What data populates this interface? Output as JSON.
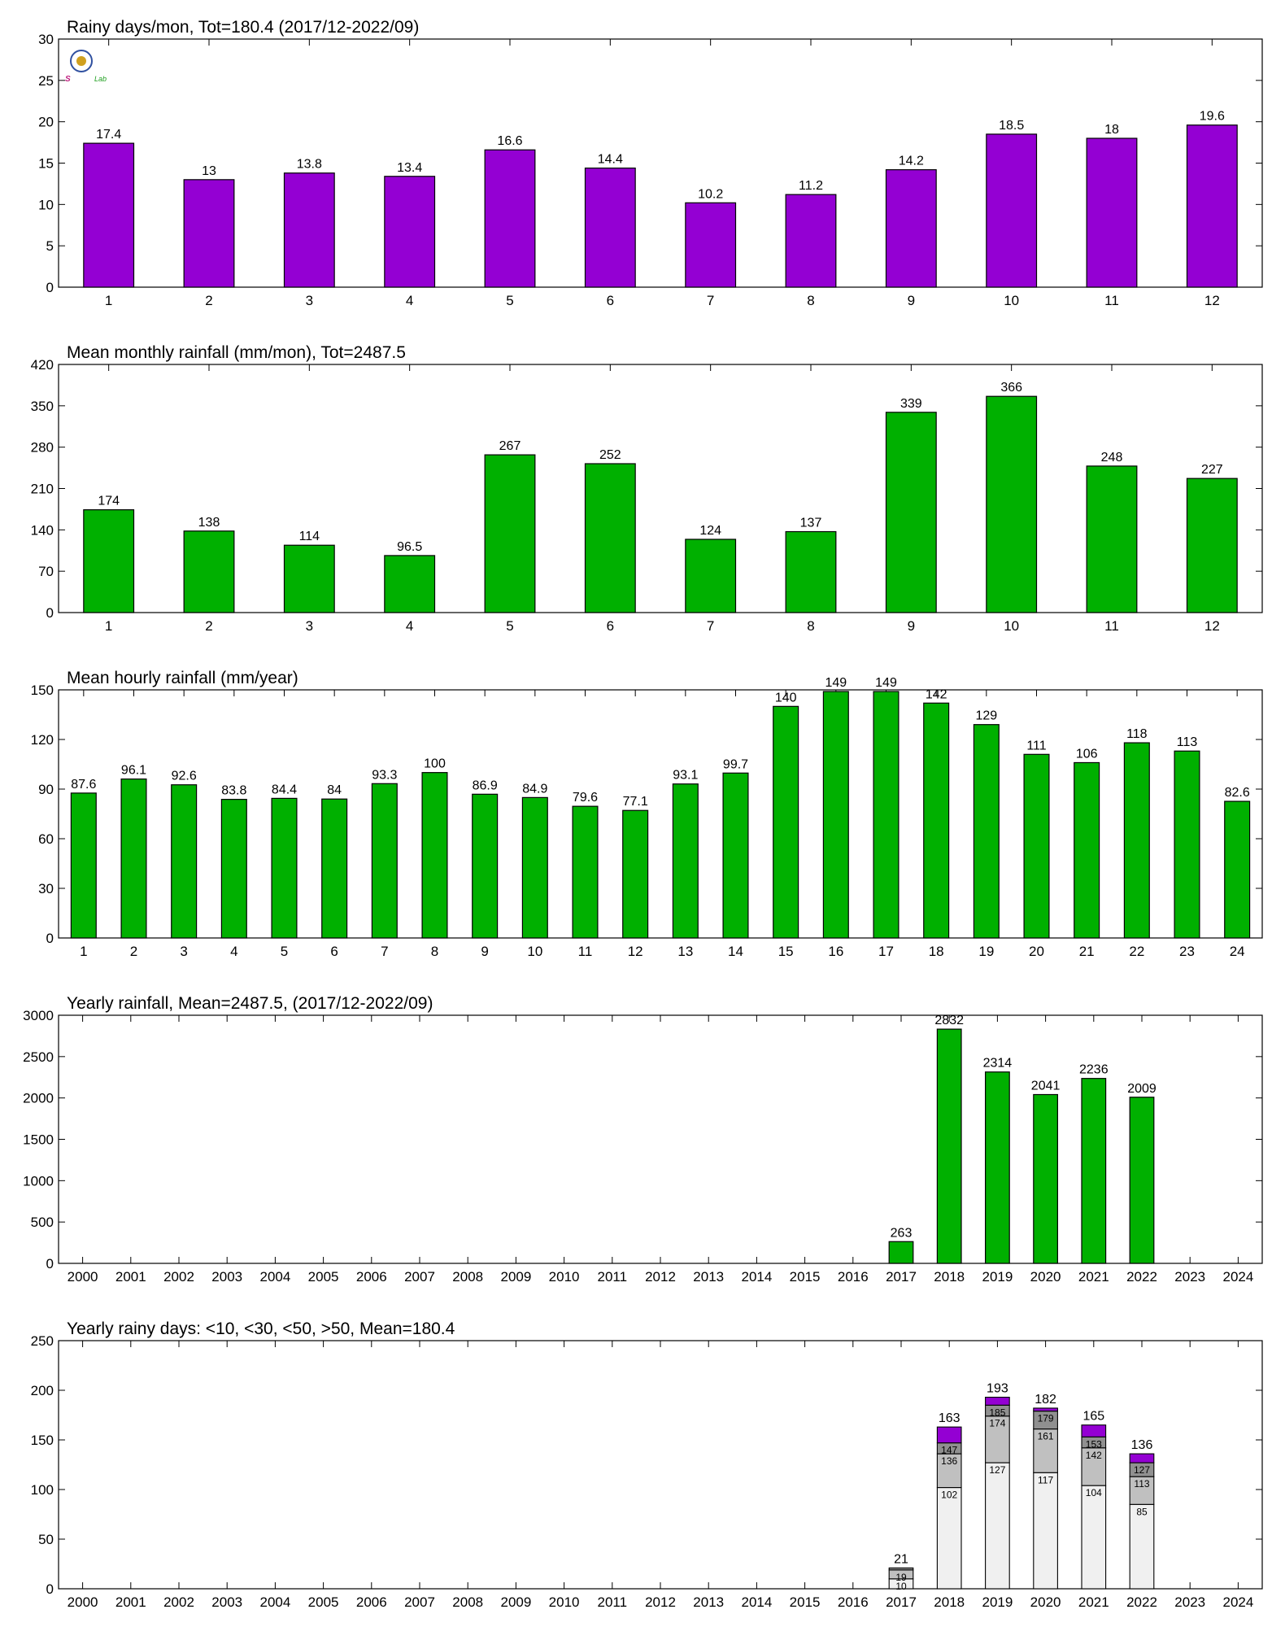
{
  "colors": {
    "purple": "#9400d3",
    "green": "#00b000",
    "seg_lt10": "#f0f0f0",
    "seg_lt30": "#c0c0c0",
    "seg_lt50": "#909090",
    "seg_gt50": "#9400d3",
    "axis": "#000000"
  },
  "logo": {
    "text_left": "S",
    "text_right": "Lab",
    "icon": "university-seal-icon"
  },
  "chart_data": [
    {
      "type": "bar",
      "title": "Rainy days/mon, Tot=180.4 (2017/12-2022/09)",
      "categories": [
        "1",
        "2",
        "3",
        "4",
        "5",
        "6",
        "7",
        "8",
        "9",
        "10",
        "11",
        "12"
      ],
      "values": [
        17.4,
        13,
        13.8,
        13.4,
        16.6,
        14.4,
        10.2,
        11.2,
        14.2,
        18.5,
        18,
        19.6
      ],
      "labels": [
        "17.4",
        "13",
        "13.8",
        "13.4",
        "16.6",
        "14.4",
        "10.2",
        "11.2",
        "14.2",
        "18.5",
        "18",
        "19.6"
      ],
      "ylim": [
        0,
        30
      ],
      "yticks": [
        "0",
        "5",
        "10",
        "15",
        "20",
        "25",
        "30"
      ],
      "color": "#9400d3",
      "grid": false
    },
    {
      "type": "bar",
      "title": "Mean monthly rainfall (mm/mon), Tot=2487.5",
      "categories": [
        "1",
        "2",
        "3",
        "4",
        "5",
        "6",
        "7",
        "8",
        "9",
        "10",
        "11",
        "12"
      ],
      "values": [
        174,
        138,
        114,
        96.5,
        267,
        252,
        124,
        137,
        339,
        366,
        248,
        227
      ],
      "labels": [
        "174",
        "138",
        "114",
        "96.5",
        "267",
        "252",
        "124",
        "137",
        "339",
        "366",
        "248",
        "227"
      ],
      "ylim": [
        0,
        420
      ],
      "yticks": [
        "0",
        "70",
        "140",
        "210",
        "280",
        "350",
        "420"
      ],
      "color": "#00b000",
      "grid": false
    },
    {
      "type": "bar",
      "title": "Mean hourly rainfall (mm/year)",
      "categories": [
        "1",
        "2",
        "3",
        "4",
        "5",
        "6",
        "7",
        "8",
        "9",
        "10",
        "11",
        "12",
        "13",
        "14",
        "15",
        "16",
        "17",
        "18",
        "19",
        "20",
        "21",
        "22",
        "23",
        "24"
      ],
      "values": [
        87.6,
        96.1,
        92.6,
        83.8,
        84.4,
        84,
        93.3,
        100,
        86.9,
        84.9,
        79.6,
        77.1,
        93.1,
        99.7,
        140,
        149,
        149,
        142,
        129,
        111,
        106,
        118,
        113,
        82.6
      ],
      "labels": [
        "87.6",
        "96.1",
        "92.6",
        "83.8",
        "84.4",
        "84",
        "93.3",
        "100",
        "86.9",
        "84.9",
        "79.6",
        "77.1",
        "93.1",
        "99.7",
        "140",
        "149",
        "149",
        "142",
        "129",
        "111",
        "106",
        "118",
        "113",
        "82.6"
      ],
      "ylim": [
        0,
        150
      ],
      "yticks": [
        "0",
        "30",
        "60",
        "90",
        "120",
        "150"
      ],
      "color": "#00b000",
      "grid": false
    },
    {
      "type": "bar",
      "title": "Yearly rainfall, Mean=2487.5, (2017/12-2022/09)",
      "categories": [
        "2000",
        "2001",
        "2002",
        "2003",
        "2004",
        "2005",
        "2006",
        "2007",
        "2008",
        "2009",
        "2010",
        "2011",
        "2012",
        "2013",
        "2014",
        "2015",
        "2016",
        "2017",
        "2018",
        "2019",
        "2020",
        "2021",
        "2022",
        "2023",
        "2024"
      ],
      "values": [
        null,
        null,
        null,
        null,
        null,
        null,
        null,
        null,
        null,
        null,
        null,
        null,
        null,
        null,
        null,
        null,
        null,
        263,
        2832,
        2314,
        2041,
        2236,
        2009,
        null,
        null
      ],
      "labels": [
        "",
        "",
        "",
        "",
        "",
        "",
        "",
        "",
        "",
        "",
        "",
        "",
        "",
        "",
        "",
        "",
        "",
        "263",
        "2832",
        "2314",
        "2041",
        "2236",
        "2009",
        "",
        ""
      ],
      "ylim": [
        0,
        3000
      ],
      "yticks": [
        "0",
        "500",
        "1000",
        "1500",
        "2000",
        "2500",
        "3000"
      ],
      "color": "#00b000",
      "grid": false
    },
    {
      "type": "bar",
      "stacked": true,
      "title": "Yearly rainy days: <10, <30, <50, >50, Mean=180.4",
      "categories": [
        "2000",
        "2001",
        "2002",
        "2003",
        "2004",
        "2005",
        "2006",
        "2007",
        "2008",
        "2009",
        "2010",
        "2011",
        "2012",
        "2013",
        "2014",
        "2015",
        "2016",
        "2017",
        "2018",
        "2019",
        "2020",
        "2021",
        "2022",
        "2023",
        "2024"
      ],
      "cumulative": [
        null,
        null,
        null,
        null,
        null,
        null,
        null,
        null,
        null,
        null,
        null,
        null,
        null,
        null,
        null,
        null,
        null,
        [
          10,
          19,
          21,
          21
        ],
        [
          102,
          136,
          147,
          163
        ],
        [
          127,
          174,
          185,
          193
        ],
        [
          117,
          161,
          179,
          182
        ],
        [
          104,
          142,
          153,
          165
        ],
        [
          85,
          113,
          127,
          136
        ],
        null,
        null
      ],
      "segment_labels": [
        null,
        null,
        null,
        null,
        null,
        null,
        null,
        null,
        null,
        null,
        null,
        null,
        null,
        null,
        null,
        null,
        null,
        [
          "10",
          "19",
          "",
          ""
        ],
        [
          "102",
          "136",
          "147",
          ""
        ],
        [
          "127",
          "174",
          "185",
          ""
        ],
        [
          "117",
          "161",
          "179",
          ""
        ],
        [
          "104",
          "142",
          "153",
          ""
        ],
        [
          "85",
          "113",
          "127",
          ""
        ],
        null,
        null
      ],
      "totals": [
        "",
        "",
        "",
        "",
        "",
        "",
        "",
        "",
        "",
        "",
        "",
        "",
        "",
        "",
        "",
        "",
        "",
        "21",
        "163",
        "193",
        "182",
        "165",
        "136",
        "",
        ""
      ],
      "ylim": [
        0,
        250
      ],
      "yticks": [
        "0",
        "50",
        "100",
        "150",
        "200",
        "250"
      ],
      "grid": false
    }
  ]
}
